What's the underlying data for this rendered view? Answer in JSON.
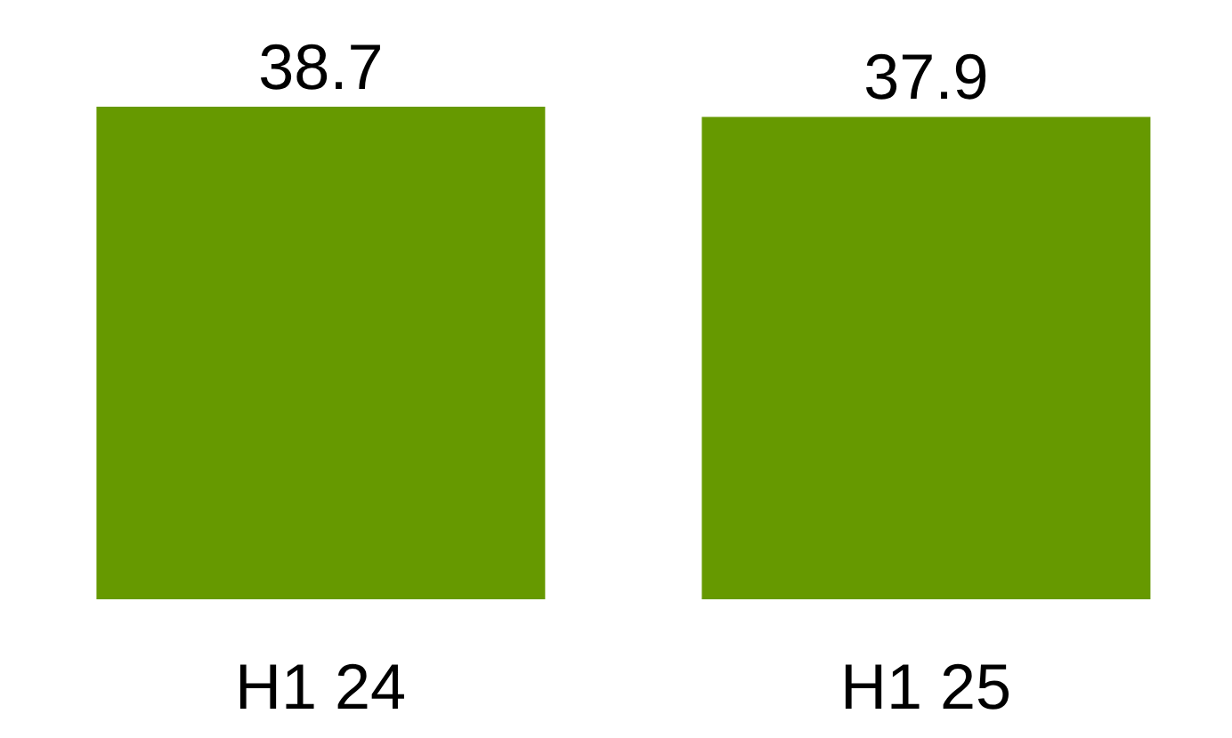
{
  "chart_data": {
    "type": "bar",
    "categories": [
      "H1 24",
      "H1 25"
    ],
    "values": [
      38.7,
      37.9
    ],
    "color": "#669900",
    "data_labels": true
  }
}
